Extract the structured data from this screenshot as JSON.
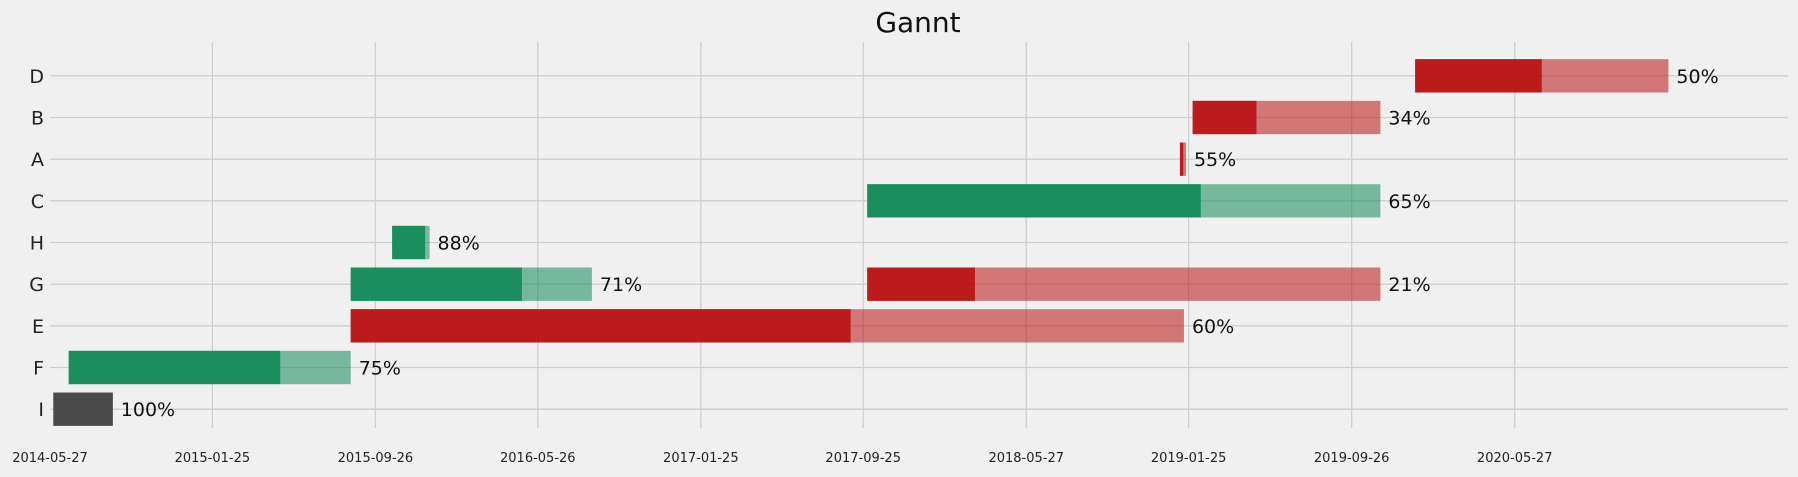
{
  "chart_data": {
    "type": "bar",
    "subtype": "gantt",
    "title": "Gannt",
    "xlabel": "",
    "ylabel": "",
    "grid": true,
    "x_axis_type": "date",
    "xlim": [
      "2014-05-27",
      "2021-07-10"
    ],
    "x_ticks": [
      "2014-05-27",
      "2015-01-25",
      "2015-09-26",
      "2016-05-26",
      "2017-01-25",
      "2017-09-25",
      "2018-05-27",
      "2019-01-25",
      "2019-09-26",
      "2020-05-27"
    ],
    "categories": [
      "D",
      "B",
      "A",
      "C",
      "H",
      "G",
      "E",
      "F",
      "I"
    ],
    "colors": {
      "green": "#138a5a",
      "red": "#b81414",
      "gray": "#444444"
    },
    "tasks": [
      {
        "label": "D",
        "start": "2019-12-30",
        "end": "2021-01-12",
        "completion": 0.5,
        "color": "red"
      },
      {
        "label": "B",
        "start": "2019-01-31",
        "end": "2019-11-08",
        "completion": 0.34,
        "color": "red"
      },
      {
        "label": "A",
        "start": "2019-01-12",
        "end": "2019-01-21",
        "completion": 0.55,
        "color": "red"
      },
      {
        "label": "C",
        "start": "2017-10-01",
        "end": "2019-11-08",
        "completion": 0.65,
        "color": "green"
      },
      {
        "label": "H",
        "start": "2015-10-21",
        "end": "2015-12-16",
        "completion": 0.88,
        "color": "green"
      },
      {
        "label": "G",
        "start": "2015-08-20",
        "end": "2016-08-15",
        "completion": 0.71,
        "color": "green"
      },
      {
        "label": "G",
        "start": "2017-10-01",
        "end": "2019-11-08",
        "completion": 0.21,
        "color": "red"
      },
      {
        "label": "E",
        "start": "2015-08-20",
        "end": "2019-01-18",
        "completion": 0.6,
        "color": "red"
      },
      {
        "label": "F",
        "start": "2014-06-24",
        "end": "2015-08-20",
        "completion": 0.75,
        "color": "green"
      },
      {
        "label": "I",
        "start": "2014-06-01",
        "end": "2014-08-29",
        "completion": 1.0,
        "color": "gray"
      }
    ]
  }
}
